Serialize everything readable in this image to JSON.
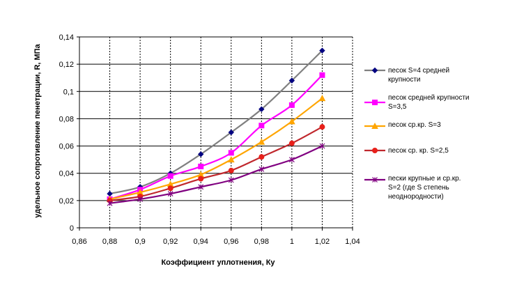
{
  "chart_data": {
    "type": "line",
    "title": "",
    "xlabel": "Коэффициент уплотнения, Ку",
    "ylabel": "удельное сопротивление пенетрации, R, МПа",
    "xlim": [
      0.86,
      1.04
    ],
    "ylim": [
      0,
      0.14
    ],
    "x_ticks": [
      "0,86",
      "0,88",
      "0,9",
      "0,92",
      "0,94",
      "0,96",
      "0,98",
      "1",
      "1,02",
      "1,04"
    ],
    "y_ticks": [
      "0",
      "0,02",
      "0,04",
      "0,06",
      "0,08",
      "0,1",
      "0,12",
      "0,14"
    ],
    "x_tick_values": [
      0.86,
      0.88,
      0.9,
      0.92,
      0.94,
      0.96,
      0.98,
      1.0,
      1.02,
      1.04
    ],
    "y_tick_values": [
      0,
      0.02,
      0.04,
      0.06,
      0.08,
      0.1,
      0.12,
      0.14
    ],
    "grid": true,
    "legend_position": "right",
    "x": [
      0.88,
      0.9,
      0.92,
      0.94,
      0.96,
      0.98,
      1.0,
      1.02
    ],
    "series": [
      {
        "name": "песок  S=4 средней крупности",
        "legend_lines": [
          "песок  S=4 средней",
          "крупности"
        ],
        "color": "#808080",
        "marker_color": "#000080",
        "marker": "diamond",
        "values": [
          0.025,
          0.03,
          0.04,
          0.054,
          0.07,
          0.087,
          0.108,
          0.13
        ]
      },
      {
        "name": "песок средней крупности S=3,5",
        "legend_lines": [
          "песок средней крупности",
          "S=3,5"
        ],
        "color": "#ff00ff",
        "marker_color": "#ff00ff",
        "marker": "square",
        "values": [
          0.021,
          0.028,
          0.038,
          0.045,
          0.055,
          0.075,
          0.09,
          0.112
        ]
      },
      {
        "name": "песок ср.кр. S=3",
        "legend_lines": [
          "песок ср.кр. S=3"
        ],
        "color": "#ffa500",
        "marker_color": "#ffa500",
        "marker": "triangle",
        "values": [
          0.021,
          0.026,
          0.032,
          0.039,
          0.05,
          0.063,
          0.078,
          0.095
        ]
      },
      {
        "name": "песок ср. кр. S=2,5",
        "legend_lines": [
          "песок ср. кр. S=2,5"
        ],
        "color": "#c0282d",
        "marker_color": "#e8201a",
        "marker": "circle",
        "values": [
          0.02,
          0.023,
          0.029,
          0.036,
          0.042,
          0.052,
          0.062,
          0.074
        ]
      },
      {
        "name": "пески крупные и ср.кр. S=2 (где S степень неоднородности)",
        "legend_lines": [
          "пески крупные и ср.кр.",
          "S=2 (где S степень",
          "неоднородности)"
        ],
        "color": "#800080",
        "marker_color": "#800080",
        "marker": "star",
        "values": [
          0.018,
          0.021,
          0.025,
          0.03,
          0.035,
          0.043,
          0.05,
          0.06
        ]
      }
    ]
  }
}
